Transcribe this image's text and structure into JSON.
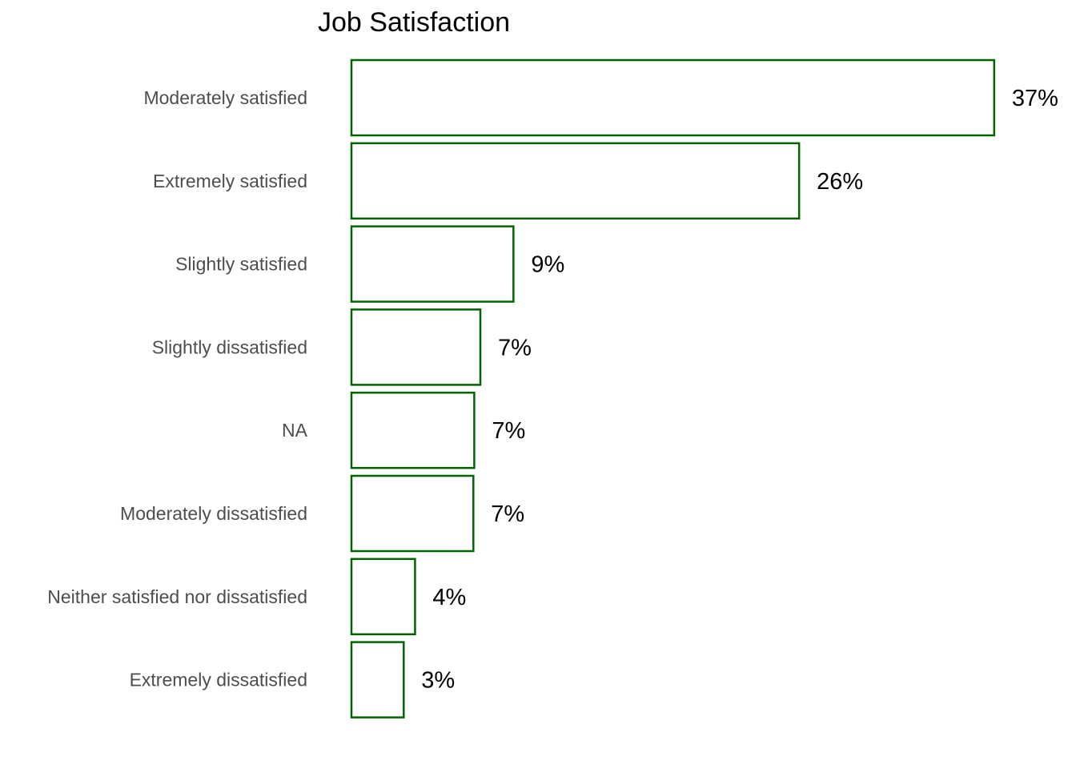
{
  "chart_data": {
    "type": "bar",
    "orientation": "horizontal",
    "title": "Job Satisfaction",
    "xlabel": "",
    "ylabel": "",
    "categories": [
      "Moderately satisfied",
      "Extremely satisfied",
      "Slightly satisfied",
      "Slightly dissatisfied",
      "NA",
      "Moderately dissatisfied",
      "Neither satisfied nor dissatisfied",
      "Extremely dissatisfied"
    ],
    "values": [
      36.9,
      25.7,
      9.3,
      7.4,
      7.05,
      7.0,
      3.65,
      3.0
    ],
    "data_labels": [
      "37%",
      "26%",
      "9%",
      "7%",
      "7%",
      "7%",
      "4%",
      "3%"
    ],
    "xlim": [
      0,
      37
    ],
    "grid": false,
    "legend": "none",
    "bar_fill": "#ffffff",
    "bar_outline": "#006400"
  }
}
